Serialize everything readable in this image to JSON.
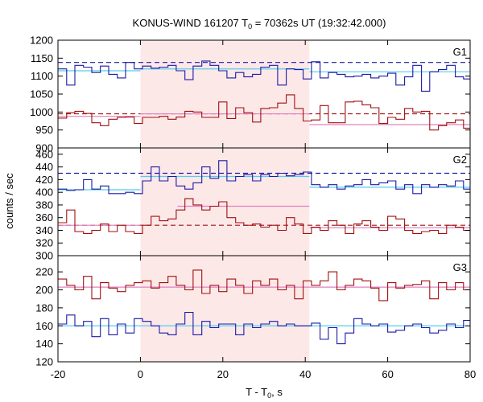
{
  "title": {
    "prefix": "KONUS-WIND 161207 T",
    "sub": "0",
    "suffix": " = 70362s UT (19:32:42.000)"
  },
  "xlabel": {
    "prefix": "T - T",
    "sub": "0",
    "suffix": ", s"
  },
  "ylabel": "counts / sec",
  "colors": {
    "blue": "#1a1aa6",
    "red": "#a01010",
    "cyan": "#55ccee",
    "pink": "#e080c0",
    "highlight": "#fde8e8"
  },
  "chart_data": {
    "type": "line",
    "subtype": "step",
    "xlim": [
      -20,
      80
    ],
    "xticks": [
      -20,
      0,
      20,
      40,
      60,
      80
    ],
    "highlight_interval": [
      0,
      41
    ],
    "grid": false,
    "panels": [
      {
        "name": "G1",
        "ylim": [
          900,
          1200
        ],
        "yticks": [
          900,
          950,
          1000,
          1050,
          1100,
          1150,
          1200
        ],
        "series": [
          {
            "color": "blue",
            "x": [
              -20,
              -17.9,
              -15.9,
              -13.8,
              -11.8,
              -9.7,
              -7.7,
              -5.6,
              -3.6,
              -1.5,
              0.5,
              2.6,
              4.6,
              6.7,
              8.7,
              10.8,
              12.8,
              14.9,
              16.9,
              19,
              21,
              23.1,
              25.1,
              27.2,
              29.2,
              31.3,
              33.3,
              35.4,
              37.4,
              39.5,
              41.5,
              43.6,
              45.6,
              47.7,
              49.7,
              51.8,
              53.8,
              55.9,
              57.9,
              60,
              62,
              64.1,
              66.1,
              68.2,
              70.2,
              72.3,
              74.3,
              76.4,
              78.4,
              80
            ],
            "y": [
              1120,
              1075,
              1130,
              1125,
              1110,
              1128,
              1105,
              1095,
              1138,
              1120,
              1128,
              1122,
              1125,
              1130,
              1115,
              1090,
              1128,
              1142,
              1130,
              1115,
              1095,
              1110,
              1098,
              1105,
              1125,
              1130,
              1075,
              1120,
              1118,
              1092,
              1140,
              1095,
              1110,
              1105,
              1098,
              1100,
              1105,
              1095,
              1100,
              1108,
              1075,
              1098,
              1130,
              1058,
              1112,
              1118,
              1130,
              1098,
              1092,
              1092
            ]
          },
          {
            "color": "red",
            "x": [
              -20,
              -17.9,
              -15.9,
              -13.8,
              -11.8,
              -9.7,
              -7.7,
              -5.6,
              -3.6,
              -1.5,
              0.5,
              2.6,
              4.6,
              6.7,
              8.7,
              10.8,
              12.8,
              14.9,
              16.9,
              19,
              21,
              23.1,
              25.1,
              27.2,
              29.2,
              31.3,
              33.3,
              35.4,
              37.4,
              39.5,
              41.5,
              43.6,
              45.6,
              47.7,
              49.7,
              51.8,
              53.8,
              55.9,
              57.9,
              60,
              62,
              64.1,
              66.1,
              68.2,
              70.2,
              72.3,
              74.3,
              76.4,
              78.4,
              80
            ],
            "y": [
              983,
              998,
              1002,
              996,
              970,
              962,
              980,
              985,
              986,
              968,
              985,
              985,
              988,
              980,
              986,
              1002,
              1000,
              985,
              985,
              1028,
              982,
              1012,
              998,
              972,
              1010,
              1012,
              1025,
              1048,
              1010,
              975,
              978,
              1018,
              970,
              970,
              1028,
              1030,
              1020,
              1012,
              968,
              985,
              980,
              1010,
              1000,
              1002,
              950,
              962,
              970,
              978,
              955,
              968
            ]
          }
        ],
        "background_levels": [
          {
            "color": "blue",
            "dash": true,
            "y": 1138,
            "x": [
              -20,
              80
            ]
          },
          {
            "color": "cyan",
            "dash": false,
            "y": 1115,
            "x": [
              -20,
              0
            ]
          },
          {
            "color": "cyan",
            "dash": false,
            "y": 1120,
            "x": [
              0,
              41
            ]
          },
          {
            "color": "cyan",
            "dash": false,
            "y": 1112,
            "x": [
              41,
              80
            ]
          },
          {
            "color": "red",
            "dash": true,
            "y": 995,
            "x": [
              -20,
              80
            ]
          },
          {
            "color": "pink",
            "dash": false,
            "y": 988,
            "x": [
              -20,
              0
            ]
          },
          {
            "color": "pink",
            "dash": false,
            "y": 995,
            "x": [
              0,
              41
            ]
          },
          {
            "color": "pink",
            "dash": false,
            "y": 965,
            "x": [
              41,
              80
            ]
          }
        ]
      },
      {
        "name": "G2",
        "ylim": [
          300,
          470
        ],
        "yticks": [
          300,
          320,
          340,
          360,
          380,
          400,
          420,
          440,
          460
        ],
        "series": [
          {
            "color": "blue",
            "x": [
              -20,
              -17.9,
              -15.9,
              -13.8,
              -11.8,
              -9.7,
              -7.7,
              -5.6,
              -3.6,
              -1.5,
              0.5,
              2.6,
              4.6,
              6.7,
              8.7,
              10.8,
              12.8,
              14.9,
              16.9,
              19,
              21,
              23.1,
              25.1,
              27.2,
              29.2,
              31.3,
              33.3,
              35.4,
              37.4,
              39.5,
              41.5,
              43.6,
              45.6,
              47.7,
              49.7,
              51.8,
              53.8,
              55.9,
              57.9,
              60,
              62,
              64.1,
              66.1,
              68.2,
              70.2,
              72.3,
              74.3,
              76.4,
              78.4,
              80
            ],
            "y": [
              405,
              403,
              404,
              420,
              405,
              410,
              398,
              398,
              400,
              398,
              418,
              440,
              418,
              425,
              410,
              405,
              415,
              440,
              422,
              450,
              418,
              425,
              428,
              418,
              428,
              425,
              430,
              426,
              428,
              432,
              412,
              408,
              412,
              405,
              410,
              412,
              420,
              412,
              415,
              418,
              405,
              412,
              398,
              412,
              408,
              412,
              410,
              418,
              405,
              408
            ]
          },
          {
            "color": "red",
            "x": [
              -20,
              -17.9,
              -15.9,
              -13.8,
              -11.8,
              -9.7,
              -7.7,
              -5.6,
              -3.6,
              -1.5,
              0.5,
              2.6,
              4.6,
              6.7,
              8.7,
              10.8,
              12.8,
              14.9,
              16.9,
              19,
              21,
              23.1,
              25.1,
              27.2,
              29.2,
              31.3,
              33.3,
              35.4,
              37.4,
              39.5,
              41.5,
              43.6,
              45.6,
              47.7,
              49.7,
              51.8,
              53.8,
              55.9,
              57.9,
              60,
              62,
              64.1,
              66.1,
              68.2,
              70.2,
              72.3,
              74.3,
              76.4,
              78.4,
              80
            ],
            "y": [
              352,
              372,
              338,
              335,
              340,
              350,
              338,
              348,
              338,
              335,
              348,
              362,
              355,
              358,
              372,
              390,
              380,
              372,
              378,
              385,
              360,
              352,
              348,
              350,
              345,
              348,
              340,
              360,
              350,
              335,
              345,
              340,
              355,
              348,
              335,
              350,
              355,
              345,
              340,
              362,
              358,
              340,
              335,
              338,
              340,
              335,
              348,
              345,
              340,
              345
            ]
          }
        ],
        "background_levels": [
          {
            "color": "blue",
            "dash": true,
            "y": 430,
            "x": [
              -20,
              80
            ]
          },
          {
            "color": "cyan",
            "dash": false,
            "y": 404,
            "x": [
              -20,
              0
            ]
          },
          {
            "color": "cyan",
            "dash": false,
            "y": 425,
            "x": [
              0,
              41
            ]
          },
          {
            "color": "cyan",
            "dash": false,
            "y": 408,
            "x": [
              41,
              80
            ]
          },
          {
            "color": "red",
            "dash": true,
            "y": 348,
            "x": [
              -20,
              80
            ]
          },
          {
            "color": "pink",
            "dash": false,
            "y": 348,
            "x": [
              -20,
              0
            ]
          },
          {
            "color": "pink",
            "dash": false,
            "y": 378,
            "x": [
              9,
              41
            ]
          },
          {
            "color": "pink",
            "dash": false,
            "y": 344,
            "x": [
              41,
              80
            ]
          }
        ]
      },
      {
        "name": "G3",
        "ylim": [
          120,
          238
        ],
        "yticks": [
          120,
          140,
          160,
          180,
          200,
          220
        ],
        "series": [
          {
            "color": "red",
            "x": [
              -20,
              -17.9,
              -15.9,
              -13.8,
              -11.8,
              -9.7,
              -7.7,
              -5.6,
              -3.6,
              -1.5,
              0.5,
              2.6,
              4.6,
              6.7,
              8.7,
              10.8,
              12.8,
              14.9,
              16.9,
              19,
              21,
              23.1,
              25.1,
              27.2,
              29.2,
              31.3,
              33.3,
              35.4,
              37.4,
              39.5,
              41.5,
              43.6,
              45.6,
              47.7,
              49.7,
              51.8,
              53.8,
              55.9,
              57.9,
              60,
              62,
              64.1,
              66.1,
              68.2,
              70.2,
              72.3,
              74.3,
              76.4,
              78.4,
              80
            ],
            "y": [
              212,
              205,
              200,
              215,
              190,
              208,
              202,
              198,
              205,
              208,
              210,
              202,
              208,
              215,
              205,
              200,
              222,
              196,
              205,
              198,
              212,
              205,
              196,
              210,
              205,
              212,
              200,
              205,
              190,
              210,
              205,
              210,
              220,
              200,
              205,
              212,
              210,
              202,
              188,
              208,
              202,
              205,
              206,
              210,
              190,
              208,
              200,
              208,
              200,
              210
            ]
          },
          {
            "color": "blue",
            "x": [
              -20,
              -17.9,
              -15.9,
              -13.8,
              -11.8,
              -9.7,
              -7.7,
              -5.6,
              -3.6,
              -1.5,
              0.5,
              2.6,
              4.6,
              6.7,
              8.7,
              10.8,
              12.8,
              14.9,
              16.9,
              19,
              21,
              23.1,
              25.1,
              27.2,
              29.2,
              31.3,
              33.3,
              35.4,
              37.4,
              39.5,
              41.5,
              43.6,
              45.6,
              47.7,
              49.7,
              51.8,
              53.8,
              55.9,
              57.9,
              60,
              62,
              64.1,
              66.1,
              68.2,
              70.2,
              72.3,
              74.3,
              76.4,
              78.4,
              80
            ],
            "y": [
              162,
              172,
              160,
              165,
              148,
              168,
              150,
              162,
              152,
              168,
              165,
              160,
              152,
              150,
              162,
              175,
              150,
              165,
              158,
              162,
              162,
              150,
              162,
              158,
              162,
              165,
              160,
              162,
              160,
              160,
              163,
              145,
              158,
              140,
              152,
              168,
              162,
              160,
              162,
              153,
              155,
              160,
              162,
              158,
              152,
              155,
              162,
              158,
              166,
              145
            ]
          }
        ],
        "background_levels": [
          {
            "color": "pink",
            "dash": false,
            "y": 203,
            "x": [
              -20,
              80
            ]
          },
          {
            "color": "cyan",
            "dash": false,
            "y": 160,
            "x": [
              -20,
              80
            ]
          }
        ]
      }
    ]
  }
}
